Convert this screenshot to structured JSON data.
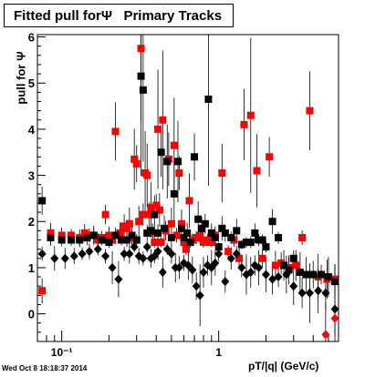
{
  "chart_data": {
    "type": "scatter",
    "title": "Fitted pull forΨ   Primary Tracks",
    "xlabel": "pT/|q| (GeV/c)",
    "ylabel": "pull for Ψ",
    "x_scale": "log",
    "xlim": [
      0.07,
      5.8
    ],
    "ylim": [
      -0.6,
      6.05
    ],
    "y_ticks": [
      0,
      1,
      2,
      3,
      4,
      5,
      6
    ],
    "x_tick_labels": [
      {
        "value": 0.1,
        "label": "10⁻¹"
      },
      {
        "value": 1,
        "label": "1"
      }
    ],
    "grid": false,
    "legend": "none",
    "series": [
      {
        "color": "#ff0000",
        "marker": "square",
        "x": [
          0.075,
          0.085,
          0.1,
          0.115,
          0.13,
          0.14,
          0.15,
          0.16,
          0.17,
          0.18,
          0.19,
          0.2,
          0.21,
          0.22,
          0.235,
          0.25,
          0.26,
          0.27,
          0.28,
          0.29,
          0.3,
          0.31,
          0.32,
          0.33,
          0.34,
          0.35,
          0.36,
          0.37,
          0.38,
          0.39,
          0.4,
          0.41,
          0.42,
          0.43,
          0.44,
          0.46,
          0.48,
          0.5,
          0.52,
          0.54,
          0.56,
          0.58,
          0.6,
          0.62,
          0.65,
          0.68,
          0.72,
          0.76,
          0.8,
          0.85,
          0.9,
          0.95,
          1.05,
          1.15,
          1.25,
          1.35,
          1.45,
          1.6,
          1.75,
          1.9,
          2.1,
          2.3,
          2.5,
          2.8,
          3.1,
          3.4,
          3.8,
          4.3,
          4.9,
          5.5
        ],
        "y": [
          0.5,
          1.75,
          1.7,
          1.7,
          1.65,
          1.75,
          1.7,
          1.7,
          1.6,
          1.65,
          2.15,
          1.7,
          1.6,
          3.95,
          1.75,
          1.9,
          1.85,
          1.95,
          1.65,
          3.35,
          3.25,
          2.0,
          5.75,
          2.15,
          3.05,
          3.0,
          2.15,
          2.3,
          1.75,
          1.55,
          2.35,
          4.0,
          2.25,
          1.55,
          4.2,
          1.8,
          3.35,
          1.95,
          3.65,
          1.7,
          3.05,
          1.95,
          1.55,
          1.4,
          2.45,
          1.6,
          1.65,
          1.7,
          1.55,
          1.6,
          1.55,
          1.7,
          3.05,
          1.35,
          1.6,
          1.2,
          4.1,
          4.3,
          3.1,
          1.2,
          3.4,
          1.05,
          1.1,
          1.0,
          1.05,
          1.65,
          4.4,
          0.8,
          0.75,
          0.75
        ]
      },
      {
        "color": "#000000",
        "marker": "square",
        "x": [
          0.075,
          0.085,
          0.1,
          0.115,
          0.13,
          0.145,
          0.16,
          0.18,
          0.2,
          0.22,
          0.24,
          0.26,
          0.28,
          0.3,
          0.32,
          0.33,
          0.35,
          0.37,
          0.39,
          0.41,
          0.43,
          0.45,
          0.47,
          0.5,
          0.52,
          0.55,
          0.58,
          0.6,
          0.63,
          0.66,
          0.7,
          0.74,
          0.78,
          0.82,
          0.86,
          0.9,
          0.95,
          1.0,
          1.05,
          1.1,
          1.2,
          1.3,
          1.4,
          1.5,
          1.6,
          1.7,
          1.8,
          1.9,
          2.0,
          2.2,
          2.4,
          2.6,
          2.8,
          3.0,
          3.3,
          3.6,
          4.0,
          4.5,
          5.0,
          5.5
        ],
        "y": [
          2.45,
          1.65,
          1.6,
          1.6,
          1.6,
          1.65,
          1.7,
          1.6,
          1.55,
          1.7,
          1.6,
          1.6,
          1.7,
          1.6,
          5.15,
          4.85,
          1.75,
          1.8,
          2.15,
          1.75,
          3.5,
          1.85,
          3.3,
          1.65,
          2.6,
          3.3,
          1.85,
          1.65,
          1.75,
          1.55,
          3.4,
          2.05,
          1.85,
          1.95,
          4.65,
          1.75,
          1.65,
          1.45,
          1.85,
          1.75,
          1.65,
          1.8,
          1.5,
          1.55,
          1.55,
          1.75,
          1.6,
          1.6,
          1.45,
          2.0,
          1.65,
          1.05,
          0.95,
          1.2,
          0.9,
          0.85,
          0.85,
          0.85,
          0.8,
          0.7
        ]
      },
      {
        "color": "#000000",
        "marker": "diamond",
        "x": [
          0.075,
          0.09,
          0.105,
          0.12,
          0.135,
          0.15,
          0.17,
          0.19,
          0.21,
          0.23,
          0.25,
          0.27,
          0.29,
          0.31,
          0.33,
          0.35,
          0.37,
          0.39,
          0.41,
          0.44,
          0.47,
          0.5,
          0.53,
          0.56,
          0.6,
          0.64,
          0.68,
          0.72,
          0.76,
          0.8,
          0.85,
          0.9,
          0.95,
          1.0,
          1.1,
          1.2,
          1.3,
          1.4,
          1.5,
          1.6,
          1.7,
          1.8,
          2.0,
          2.2,
          2.4,
          2.7,
          3.0,
          3.4,
          3.8,
          4.3,
          4.8,
          5.5
        ],
        "y": [
          1.3,
          1.2,
          1.2,
          1.25,
          1.3,
          1.35,
          1.4,
          1.25,
          1.0,
          0.75,
          1.3,
          1.3,
          1.45,
          1.25,
          1.2,
          1.45,
          1.2,
          1.25,
          1.35,
          0.9,
          1.4,
          1.3,
          1.0,
          1.0,
          1.1,
          1.05,
          0.95,
          0.6,
          0.4,
          0.9,
          1.05,
          1.0,
          1.1,
          1.3,
          0.7,
          1.2,
          1.3,
          1.0,
          0.85,
          0.9,
          1.05,
          1.0,
          0.85,
          0.75,
          0.8,
          0.85,
          0.6,
          0.45,
          0.45,
          0.5,
          0.45,
          0.1
        ]
      },
      {
        "color": "#ff0000",
        "marker": "diamond",
        "x": [
          4.8,
          5.5
        ],
        "y": [
          -0.45,
          -0.1
        ]
      }
    ]
  },
  "timestamp": "Wed Oct  8 18:18:37 2014"
}
